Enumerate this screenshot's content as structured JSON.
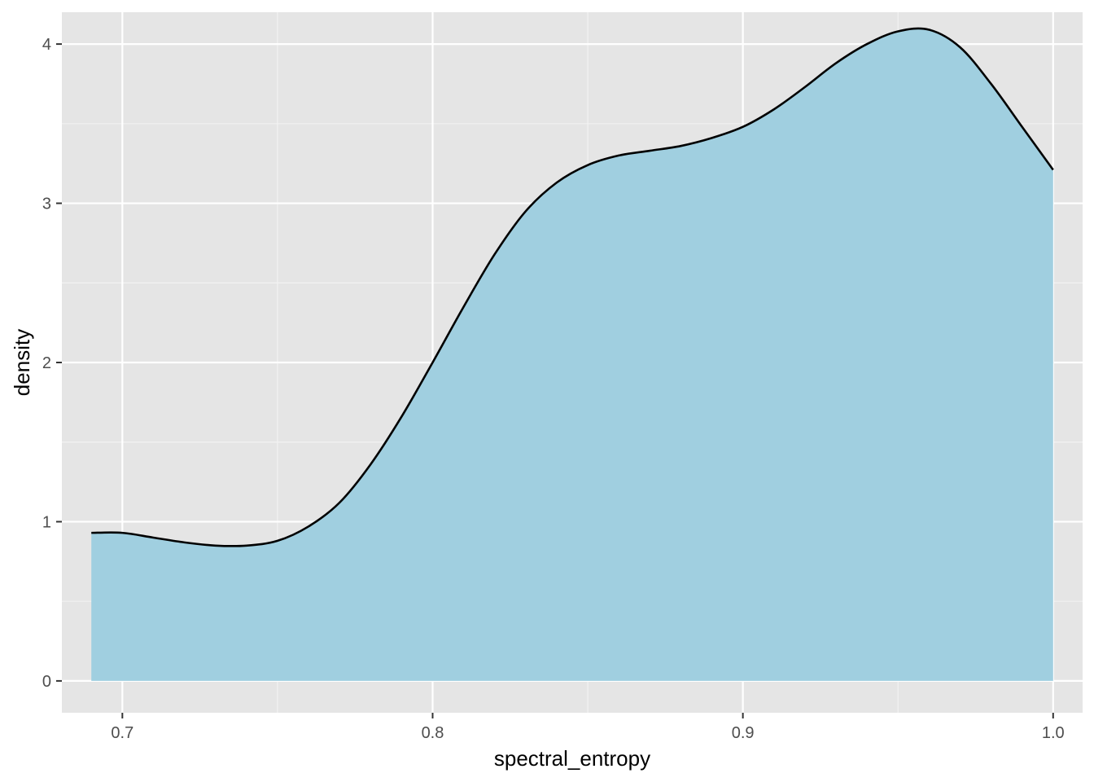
{
  "chart_data": {
    "type": "area",
    "title": "",
    "xlabel": "spectral_entropy",
    "ylabel": "density",
    "xlim": [
      0.6805,
      1.0095
    ],
    "ylim": [
      -0.2,
      4.2
    ],
    "x_ticks": [
      0.7,
      0.8,
      0.9,
      1.0
    ],
    "x_tick_labels": [
      "0.7",
      "0.8",
      "0.9",
      "1.0"
    ],
    "y_ticks": [
      0,
      1,
      2,
      3,
      4
    ],
    "y_tick_labels": [
      "0",
      "1",
      "2",
      "3",
      "4"
    ],
    "grid": true,
    "legend": "none",
    "series": [
      {
        "name": "density",
        "fill": "#a0cfe0",
        "line": "#000000",
        "x": [
          0.69,
          0.7,
          0.71,
          0.72,
          0.73,
          0.74,
          0.75,
          0.76,
          0.77,
          0.78,
          0.79,
          0.8,
          0.81,
          0.82,
          0.83,
          0.84,
          0.85,
          0.86,
          0.87,
          0.88,
          0.89,
          0.9,
          0.91,
          0.92,
          0.93,
          0.94,
          0.95,
          0.96,
          0.97,
          0.98,
          0.99,
          1.0
        ],
        "y": [
          0.93,
          0.93,
          0.9,
          0.87,
          0.85,
          0.85,
          0.88,
          0.97,
          1.12,
          1.36,
          1.66,
          2.0,
          2.35,
          2.68,
          2.95,
          3.13,
          3.24,
          3.3,
          3.33,
          3.36,
          3.41,
          3.48,
          3.59,
          3.73,
          3.88,
          4.0,
          4.08,
          4.09,
          3.98,
          3.75,
          3.48,
          3.21
        ]
      }
    ]
  }
}
